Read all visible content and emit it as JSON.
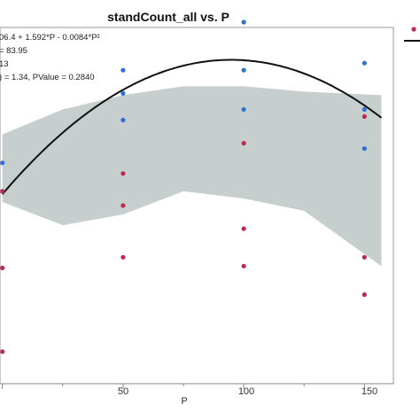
{
  "chart_data": {
    "type": "scatter",
    "title": "standCount_all vs. P",
    "xlabel": "P",
    "ylabel": "",
    "xlim": [
      -1,
      162
    ],
    "ylim": [
      0,
      20
    ],
    "x_ticks": [
      "50",
      "100",
      "150"
    ],
    "x_tick_values": [
      50,
      100,
      150
    ],
    "grid": false,
    "annotations": [
      "06.4 + 1.592*P - 0.0084*P²",
      "= 83.95",
      "13",
      ") = 1.34, PValue = 0.2840"
    ],
    "series": [
      {
        "color": "#2f6fdc",
        "points": [
          [
            0,
            12.4
          ],
          [
            50,
            17.6
          ],
          [
            50,
            16.3
          ],
          [
            50,
            14.8
          ],
          [
            100,
            20.3
          ],
          [
            100,
            17.6
          ],
          [
            100,
            15.4
          ],
          [
            150,
            18.0
          ],
          [
            150,
            15.4
          ],
          [
            150,
            13.2
          ]
        ]
      },
      {
        "color": "#c02850",
        "points": [
          [
            0,
            10.8
          ],
          [
            0,
            6.5
          ],
          [
            0,
            1.8
          ],
          [
            50,
            11.8
          ],
          [
            50,
            10.0
          ],
          [
            50,
            7.1
          ],
          [
            100,
            13.5
          ],
          [
            100,
            8.7
          ],
          [
            100,
            6.6
          ],
          [
            150,
            15.0
          ],
          [
            150,
            7.1
          ],
          [
            150,
            5.0
          ]
        ]
      }
    ],
    "fit_curve": {
      "color": "#111111",
      "coefficients": [
        106.4,
        1.592,
        -0.0084
      ],
      "scale": 0.1,
      "x_range": [
        0,
        157
      ]
    },
    "confidence_band": {
      "color": "#c4cbcb",
      "upper": [
        [
          0,
          14.0
        ],
        [
          25,
          15.4
        ],
        [
          50,
          16.2
        ],
        [
          75,
          16.7
        ],
        [
          100,
          16.7
        ],
        [
          125,
          16.4
        ],
        [
          157,
          16.2
        ]
      ],
      "lower": [
        [
          0,
          10.2
        ],
        [
          25,
          8.9
        ],
        [
          50,
          9.5
        ],
        [
          75,
          10.8
        ],
        [
          100,
          10.4
        ],
        [
          125,
          9.7
        ],
        [
          157,
          6.6
        ]
      ]
    },
    "legend": {
      "placement": "top-right",
      "items": [
        {
          "color": "#c02850",
          "kind": "dot"
        },
        {
          "color": "#111111",
          "kind": "line"
        }
      ]
    }
  }
}
